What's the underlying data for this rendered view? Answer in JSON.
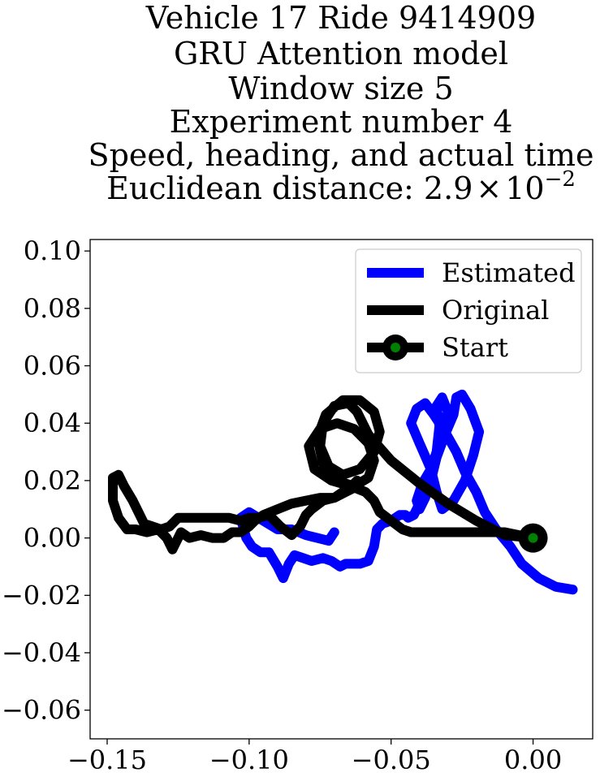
{
  "chart_data": {
    "type": "line",
    "title_lines": [
      "Vehicle 17 Ride 9414909",
      "GRU Attention model",
      "Window size 5",
      "Experiment number 4",
      "Speed, heading, and actual time"
    ],
    "title_distance_prefix": "Euclidean distance: 2.9",
    "title_distance_times": "×",
    "title_distance_base": "10",
    "title_distance_exp": "−2",
    "xlim": [
      -0.156,
      0.021
    ],
    "ylim": [
      -0.07,
      0.104
    ],
    "xticks": [
      -0.15,
      -0.1,
      -0.05,
      0.0
    ],
    "xtick_labels": [
      "−0.15",
      "−0.10",
      "−0.05",
      "0.00"
    ],
    "yticks": [
      0.1,
      0.08,
      0.06,
      0.04,
      0.02,
      0.0,
      -0.02,
      -0.04,
      -0.06
    ],
    "ytick_labels": [
      "0.10",
      "0.08",
      "0.06",
      "0.04",
      "0.02",
      "0.00",
      "−0.02",
      "−0.04",
      "−0.06"
    ],
    "legend_placement": "top-right",
    "grid": false,
    "series": [
      {
        "name": "Estimated",
        "color": "#0000ff",
        "x": [
          0.014,
          0.008,
          0.002,
          -0.004,
          -0.008,
          -0.013,
          -0.017,
          -0.02,
          -0.024,
          -0.027,
          -0.031,
          -0.035,
          -0.038,
          -0.041,
          -0.043,
          -0.04,
          -0.036,
          -0.034,
          -0.032,
          -0.028,
          -0.024,
          -0.021,
          -0.019,
          -0.022,
          -0.025,
          -0.027,
          -0.028,
          -0.031,
          -0.034,
          -0.036,
          -0.038,
          -0.04,
          -0.041,
          -0.039,
          -0.036,
          -0.034,
          -0.033,
          -0.034,
          -0.032,
          -0.03,
          -0.032,
          -0.034,
          -0.036,
          -0.038,
          -0.04,
          -0.042,
          -0.044,
          -0.045,
          -0.047,
          -0.05,
          -0.053,
          -0.055,
          -0.056,
          -0.058,
          -0.061,
          -0.064,
          -0.066,
          -0.068,
          -0.071,
          -0.074,
          -0.078,
          -0.081,
          -0.084,
          -0.086,
          -0.088,
          -0.09,
          -0.093,
          -0.096,
          -0.099,
          -0.101,
          -0.103,
          -0.1,
          -0.095,
          -0.09,
          -0.085,
          -0.08,
          -0.076,
          -0.072,
          -0.07
        ],
        "y": [
          -0.018,
          -0.017,
          -0.014,
          -0.009,
          -0.003,
          0.003,
          0.009,
          0.016,
          0.023,
          0.03,
          0.037,
          0.043,
          0.047,
          0.045,
          0.04,
          0.033,
          0.024,
          0.016,
          0.01,
          0.013,
          0.02,
          0.029,
          0.037,
          0.045,
          0.05,
          0.049,
          0.043,
          0.036,
          0.028,
          0.02,
          0.014,
          0.01,
          0.013,
          0.019,
          0.024,
          0.03,
          0.039,
          0.046,
          0.049,
          0.044,
          0.036,
          0.03,
          0.024,
          0.019,
          0.012,
          0.008,
          0.007,
          0.008,
          0.008,
          0.006,
          0.005,
          0.003,
          -0.003,
          -0.008,
          -0.009,
          -0.009,
          -0.009,
          -0.01,
          -0.008,
          -0.007,
          -0.008,
          -0.007,
          -0.006,
          -0.009,
          -0.014,
          -0.01,
          -0.005,
          -0.005,
          -0.003,
          0.0,
          0.007,
          0.009,
          0.006,
          0.003,
          0.003,
          0.001,
          0.0,
          -0.001,
          0.002
        ]
      },
      {
        "name": "Original",
        "color": "#000000",
        "x": [
          0.0,
          -0.01,
          -0.02,
          -0.03,
          -0.04,
          -0.05,
          -0.058,
          -0.062,
          -0.065,
          -0.07,
          -0.074,
          -0.075,
          -0.072,
          -0.067,
          -0.061,
          -0.056,
          -0.054,
          -0.056,
          -0.061,
          -0.067,
          -0.073,
          -0.076,
          -0.074,
          -0.069,
          -0.063,
          -0.058,
          -0.056,
          -0.058,
          -0.063,
          -0.069,
          -0.075,
          -0.079,
          -0.077,
          -0.071,
          -0.064,
          -0.059,
          -0.056,
          -0.054,
          -0.05,
          -0.046,
          -0.043,
          -0.04,
          -0.036,
          -0.03,
          -0.024,
          -0.019,
          -0.015,
          -0.01,
          -0.005,
          0.0
        ],
        "y": [
          0.0,
          0.001,
          0.006,
          0.012,
          0.019,
          0.027,
          0.036,
          0.044,
          0.047,
          0.046,
          0.04,
          0.032,
          0.025,
          0.022,
          0.024,
          0.03,
          0.037,
          0.044,
          0.048,
          0.048,
          0.043,
          0.035,
          0.026,
          0.02,
          0.018,
          0.021,
          0.027,
          0.033,
          0.038,
          0.04,
          0.038,
          0.032,
          0.024,
          0.02,
          0.018,
          0.016,
          0.013,
          0.009,
          0.006,
          0.003,
          0.002,
          0.002,
          0.002,
          0.002,
          0.002,
          0.002,
          0.002,
          0.002,
          0.001,
          0.0
        ]
      },
      {
        "name": "Original",
        "color": "#000000",
        "x": [
          -0.062,
          -0.066,
          -0.07,
          -0.075,
          -0.08,
          -0.085,
          -0.09,
          -0.095,
          -0.098,
          -0.1,
          -0.103,
          -0.106,
          -0.109,
          -0.113,
          -0.117,
          -0.121,
          -0.124,
          -0.127,
          -0.129,
          -0.132,
          -0.136,
          -0.14,
          -0.143,
          -0.146,
          -0.148,
          -0.148,
          -0.146,
          -0.144,
          -0.141,
          -0.139,
          -0.137,
          -0.134,
          -0.131,
          -0.128,
          -0.125,
          -0.121,
          -0.117,
          -0.112,
          -0.107,
          -0.103,
          -0.1,
          -0.097,
          -0.093,
          -0.089,
          -0.085,
          -0.082,
          -0.08,
          -0.078,
          -0.074,
          -0.07,
          -0.067,
          -0.064,
          -0.062
        ],
        "y": [
          0.018,
          0.016,
          0.014,
          0.014,
          0.013,
          0.012,
          0.01,
          0.008,
          0.006,
          0.004,
          0.002,
          0.002,
          0.0,
          0.0,
          0.001,
          0.0,
          0.002,
          -0.004,
          0.0,
          0.003,
          0.002,
          0.003,
          0.003,
          0.007,
          0.013,
          0.021,
          0.022,
          0.018,
          0.013,
          0.009,
          0.005,
          0.004,
          0.003,
          0.004,
          0.007,
          0.007,
          0.007,
          0.007,
          0.007,
          0.006,
          0.007,
          0.007,
          0.008,
          0.004,
          0.001,
          0.004,
          0.008,
          0.01,
          0.013,
          0.014,
          0.016,
          0.018,
          0.02
        ]
      }
    ],
    "start_point": {
      "name": "Start",
      "x": 0.0,
      "y": 0.0,
      "outer_color": "#000000",
      "inner_color": "#008000"
    },
    "legend": [
      {
        "label": "Estimated",
        "color": "#0000ff",
        "marker": false
      },
      {
        "label": "Original",
        "color": "#000000",
        "marker": false
      },
      {
        "label": "Start",
        "color": "#000000",
        "marker": true,
        "marker_color": "#008000"
      }
    ]
  }
}
